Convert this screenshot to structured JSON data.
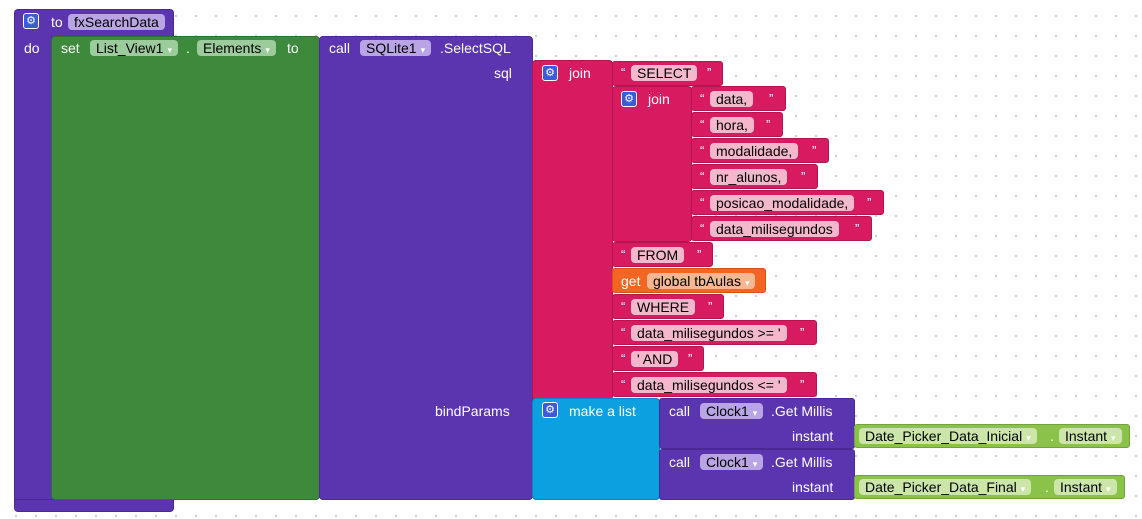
{
  "procedure": {
    "to_label": "to",
    "name": "fxSearchData",
    "do_label": "do"
  },
  "set_block": {
    "set_label": "set",
    "component": "List_View1",
    "dot": ".",
    "property": "Elements",
    "to_label": "to"
  },
  "call_sql": {
    "call_label": "call",
    "component": "SQLite1",
    "method": ".SelectSQL",
    "sql_label": "sql",
    "bind_label": "bindParams"
  },
  "join_outer": {
    "label": "join",
    "select": "SELECT",
    "from": "FROM",
    "where": "WHERE",
    "cond1": "data_milisegundos >= '",
    "and": "' AND",
    "cond2": "data_milisegundos <= '"
  },
  "join_inner": {
    "label": "join",
    "columns": [
      "data,",
      "hora,",
      "modalidade,",
      "nr_alunos,",
      "posicao_modalidade,",
      "data_milisegundos"
    ]
  },
  "get_block": {
    "label": "get",
    "variable": "global tbAulas"
  },
  "make_list": {
    "label": "make a list"
  },
  "get_millis": [
    {
      "call_label": "call",
      "component": "Clock1",
      "method": ".Get Millis",
      "param": "instant",
      "picker": "Date_Picker_Data_Inicial",
      "dot": ".",
      "property": "Instant"
    },
    {
      "call_label": "call",
      "component": "Clock1",
      "method": ".Get Millis",
      "param": "instant",
      "picker": "Date_Picker_Data_Final",
      "dot": ".",
      "property": "Instant"
    }
  ],
  "quote_open": "“",
  "quote_close": "”",
  "dropdown_icon": "▾",
  "colors": {
    "procedure": "#5b35b0",
    "set": "#3d8a3d",
    "text": "#d81b60",
    "get": "#f26522",
    "list": "#0ca0e0",
    "picker": "#8bc34a",
    "mutator": "#3b5bdb"
  }
}
